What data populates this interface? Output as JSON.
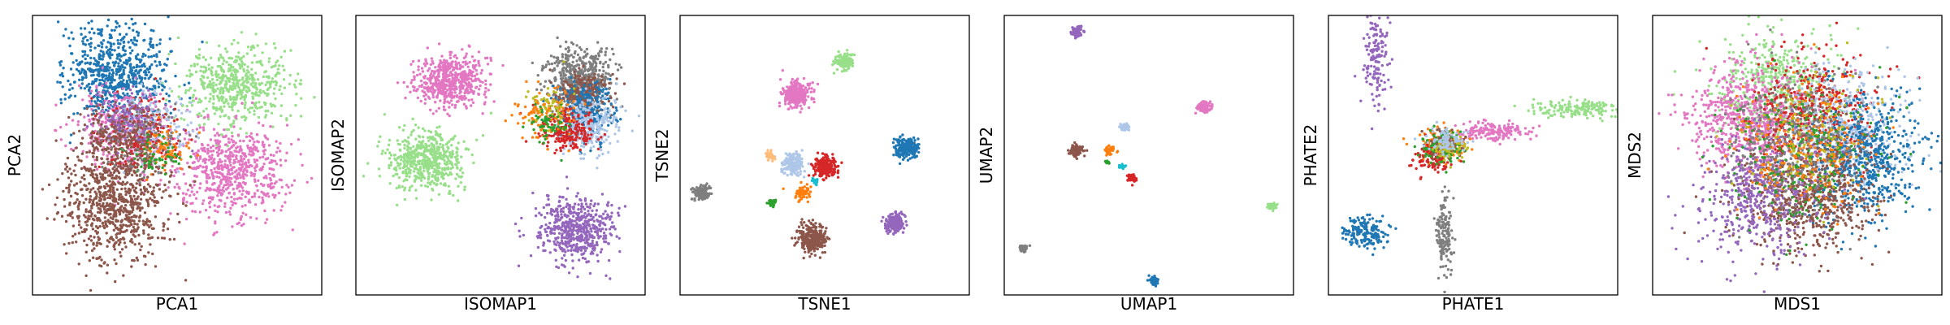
{
  "chart_data": [
    {
      "type": "scatter",
      "xlabel": "PCA1",
      "ylabel": "PCA2",
      "xlim": [
        -6,
        6
      ],
      "ylim": [
        -6,
        6
      ],
      "grid": false,
      "ticks": "none",
      "clusters": [
        {
          "color": "#1f77b4",
          "center": [
            -2.5,
            3.5
          ],
          "spread": [
            1.0,
            1.1
          ],
          "n": 700
        },
        {
          "color": "#98df8a",
          "center": [
            2.5,
            3.0
          ],
          "spread": [
            1.1,
            0.9
          ],
          "n": 550
        },
        {
          "color": "#e377c2",
          "center": [
            -2.3,
            1.1
          ],
          "spread": [
            1.0,
            0.9
          ],
          "n": 350
        },
        {
          "color": "#e377c2",
          "center": [
            2.2,
            -0.7
          ],
          "spread": [
            1.2,
            1.0
          ],
          "n": 650
        },
        {
          "color": "#d62728",
          "center": [
            -1.4,
            0.8
          ],
          "spread": [
            0.8,
            0.8
          ],
          "n": 200
        },
        {
          "color": "#aec7e8",
          "center": [
            -1.0,
            1.3
          ],
          "spread": [
            0.8,
            0.8
          ],
          "n": 150
        },
        {
          "color": "#ff7f0e",
          "center": [
            -0.6,
            0.3
          ],
          "spread": [
            0.5,
            0.5
          ],
          "n": 80
        },
        {
          "color": "#8c564b",
          "center": [
            -2.4,
            0.9
          ],
          "spread": [
            0.9,
            0.7
          ],
          "n": 250
        },
        {
          "color": "#8c564b",
          "center": [
            -2.6,
            -2.0
          ],
          "spread": [
            1.1,
            1.2
          ],
          "n": 800
        },
        {
          "color": "#2ca02c",
          "center": [
            -1.0,
            0.0
          ],
          "spread": [
            0.6,
            0.5
          ],
          "n": 60
        },
        {
          "color": "#9467bd",
          "center": [
            -1.8,
            1.6
          ],
          "spread": [
            0.8,
            0.6
          ],
          "n": 100
        },
        {
          "color": "#7f7f7f",
          "center": [
            -1.5,
            0.5
          ],
          "spread": [
            0.8,
            0.7
          ],
          "n": 60
        }
      ]
    },
    {
      "type": "scatter",
      "xlabel": "ISOMAP1",
      "ylabel": "ISOMAP2",
      "xlim": [
        -6,
        6
      ],
      "ylim": [
        -6,
        6
      ],
      "grid": false,
      "ticks": "none",
      "clusters": [
        {
          "color": "#e377c2",
          "center": [
            -2.1,
            3.2
          ],
          "spread": [
            0.75,
            0.55
          ],
          "n": 550
        },
        {
          "color": "#98df8a",
          "center": [
            -3.0,
            -0.2
          ],
          "spread": [
            0.8,
            0.65
          ],
          "n": 550
        },
        {
          "color": "#9467bd",
          "center": [
            3.1,
            -3.2
          ],
          "spread": [
            0.75,
            0.7
          ],
          "n": 550
        },
        {
          "color": "#7f7f7f",
          "center": [
            3.3,
            3.4
          ],
          "spread": [
            0.7,
            0.6
          ],
          "n": 450
        },
        {
          "color": "#8c564b",
          "center": [
            3.4,
            2.6
          ],
          "spread": [
            0.55,
            0.5
          ],
          "n": 300
        },
        {
          "color": "#1f77b4",
          "center": [
            3.5,
            1.8
          ],
          "spread": [
            0.6,
            0.6
          ],
          "n": 300
        },
        {
          "color": "#aec7e8",
          "center": [
            3.7,
            1.3
          ],
          "spread": [
            0.6,
            0.6
          ],
          "n": 250
        },
        {
          "color": "#d62728",
          "center": [
            2.8,
            1.1
          ],
          "spread": [
            0.55,
            0.45
          ],
          "n": 200
        },
        {
          "color": "#ff7f0e",
          "center": [
            1.8,
            1.8
          ],
          "spread": [
            0.6,
            0.55
          ],
          "n": 120
        },
        {
          "color": "#2ca02c",
          "center": [
            1.9,
            1.3
          ],
          "spread": [
            0.4,
            0.4
          ],
          "n": 60
        },
        {
          "color": "#bcbd22",
          "center": [
            2.0,
            2.4
          ],
          "spread": [
            0.5,
            0.5
          ],
          "n": 40
        }
      ]
    },
    {
      "type": "scatter",
      "xlabel": "TSNE1",
      "ylabel": "TSNE2",
      "xlim": [
        -6,
        6
      ],
      "ylim": [
        -6,
        6
      ],
      "grid": false,
      "ticks": "none",
      "clusters": [
        {
          "color": "#e377c2",
          "center": [
            -1.2,
            2.6
          ],
          "spread": [
            0.3,
            0.27
          ],
          "n": 320
        },
        {
          "color": "#98df8a",
          "center": [
            0.8,
            4.0
          ],
          "spread": [
            0.18,
            0.16
          ],
          "n": 160
        },
        {
          "color": "#1f77b4",
          "center": [
            3.4,
            0.3
          ],
          "spread": [
            0.22,
            0.22
          ],
          "n": 220
        },
        {
          "color": "#d62728",
          "center": [
            0.0,
            -0.5
          ],
          "spread": [
            0.24,
            0.22
          ],
          "n": 220
        },
        {
          "color": "#aec7e8",
          "center": [
            -1.3,
            -0.4
          ],
          "spread": [
            0.22,
            0.22
          ],
          "n": 180
        },
        {
          "color": "#8c564b",
          "center": [
            -0.5,
            -3.6
          ],
          "spread": [
            0.3,
            0.28
          ],
          "n": 320
        },
        {
          "color": "#9467bd",
          "center": [
            2.9,
            -2.9
          ],
          "spread": [
            0.2,
            0.2
          ],
          "n": 180
        },
        {
          "color": "#7f7f7f",
          "center": [
            -5.1,
            -1.6
          ],
          "spread": [
            0.17,
            0.15
          ],
          "n": 140
        },
        {
          "color": "#ffbb78",
          "center": [
            -2.3,
            0.0
          ],
          "spread": [
            0.1,
            0.1
          ],
          "n": 30
        },
        {
          "color": "#ff7f0e",
          "center": [
            -0.9,
            -1.6
          ],
          "spread": [
            0.2,
            0.17
          ],
          "n": 60
        },
        {
          "color": "#2ca02c",
          "center": [
            -2.2,
            -2.1
          ],
          "spread": [
            0.1,
            0.09
          ],
          "n": 25
        },
        {
          "color": "#17becf",
          "center": [
            -0.4,
            -1.1
          ],
          "spread": [
            0.08,
            0.08
          ],
          "n": 15
        }
      ]
    },
    {
      "type": "scatter",
      "xlabel": "UMAP1",
      "ylabel": "UMAP2",
      "xlim": [
        -6,
        6
      ],
      "ylim": [
        -6,
        6
      ],
      "grid": false,
      "ticks": "none",
      "clusters": [
        {
          "color": "#9467bd",
          "center": [
            -3.0,
            5.3
          ],
          "spread": [
            0.12,
            0.1
          ],
          "n": 70
        },
        {
          "color": "#e377c2",
          "center": [
            2.3,
            2.1
          ],
          "spread": [
            0.15,
            0.12
          ],
          "n": 80
        },
        {
          "color": "#aec7e8",
          "center": [
            -1.0,
            1.2
          ],
          "spread": [
            0.1,
            0.09
          ],
          "n": 50
        },
        {
          "color": "#8c564b",
          "center": [
            -3.0,
            0.2
          ],
          "spread": [
            0.16,
            0.12
          ],
          "n": 90
        },
        {
          "color": "#ff7f0e",
          "center": [
            -1.6,
            0.2
          ],
          "spread": [
            0.12,
            0.1
          ],
          "n": 35
        },
        {
          "color": "#d62728",
          "center": [
            -0.7,
            -1.0
          ],
          "spread": [
            0.1,
            0.09
          ],
          "n": 50
        },
        {
          "color": "#98df8a",
          "center": [
            5.1,
            -2.2
          ],
          "spread": [
            0.08,
            0.07
          ],
          "n": 40
        },
        {
          "color": "#7f7f7f",
          "center": [
            -5.2,
            -4.0
          ],
          "spread": [
            0.09,
            0.07
          ],
          "n": 35
        },
        {
          "color": "#1f77b4",
          "center": [
            0.2,
            -5.4
          ],
          "spread": [
            0.1,
            0.09
          ],
          "n": 60
        },
        {
          "color": "#17becf",
          "center": [
            -1.1,
            -0.5
          ],
          "spread": [
            0.08,
            0.06
          ],
          "n": 15
        },
        {
          "color": "#2ca02c",
          "center": [
            -1.7,
            -0.3
          ],
          "spread": [
            0.07,
            0.05
          ],
          "n": 12
        }
      ]
    },
    {
      "type": "scatter",
      "xlabel": "PHATE1",
      "ylabel": "PHATE2",
      "xlim": [
        -6,
        6
      ],
      "ylim": [
        -6,
        6
      ],
      "grid": false,
      "ticks": "none",
      "clusters": [
        {
          "color": "#9467bd",
          "center": [
            -4.0,
            4.2
          ],
          "spread": [
            0.25,
            1.1
          ],
          "n": 150
        },
        {
          "color": "#98df8a",
          "center": [
            4.5,
            2.0
          ],
          "spread": [
            1.0,
            0.2
          ],
          "n": 170
        },
        {
          "color": "#1f77b4",
          "center": [
            -4.5,
            -3.3
          ],
          "spread": [
            0.45,
            0.35
          ],
          "n": 170
        },
        {
          "color": "#7f7f7f",
          "center": [
            -1.2,
            -3.4
          ],
          "spread": [
            0.18,
            0.9
          ],
          "n": 150
        },
        {
          "color": "#e377c2",
          "center": [
            0.8,
            1.0
          ],
          "spread": [
            0.7,
            0.2
          ],
          "n": 170
        },
        {
          "color": "#ff7f0e",
          "center": [
            -1.3,
            0.5
          ],
          "spread": [
            0.5,
            0.35
          ],
          "n": 120
        },
        {
          "color": "#d62728",
          "center": [
            -1.6,
            -0.1
          ],
          "spread": [
            0.4,
            0.3
          ],
          "n": 120
        },
        {
          "color": "#8c564b",
          "center": [
            -1.2,
            0.5
          ],
          "spread": [
            0.35,
            0.3
          ],
          "n": 100
        },
        {
          "color": "#2ca02c",
          "center": [
            -1.3,
            0.4
          ],
          "spread": [
            0.45,
            0.35
          ],
          "n": 90
        },
        {
          "color": "#bcbd22",
          "center": [
            -1.0,
            0.3
          ],
          "spread": [
            0.35,
            0.3
          ],
          "n": 60
        },
        {
          "color": "#aec7e8",
          "center": [
            -1.1,
            0.6
          ],
          "spread": [
            0.4,
            0.3
          ],
          "n": 80
        }
      ]
    },
    {
      "type": "scatter",
      "xlabel": "MDS1",
      "ylabel": "MDS2",
      "xlim": [
        -6,
        6
      ],
      "ylim": [
        -6,
        6
      ],
      "grid": false,
      "ticks": "none",
      "clusters": [
        {
          "color": "#98df8a",
          "center": [
            -1.0,
            2.8
          ],
          "spread": [
            1.2,
            1.2
          ],
          "n": 500
        },
        {
          "color": "#e377c2",
          "center": [
            -2.0,
            1.5
          ],
          "spread": [
            1.2,
            1.2
          ],
          "n": 700
        },
        {
          "color": "#d62728",
          "center": [
            0.8,
            1.8
          ],
          "spread": [
            1.3,
            1.3
          ],
          "n": 450
        },
        {
          "color": "#aec7e8",
          "center": [
            2.2,
            1.0
          ],
          "spread": [
            1.2,
            1.3
          ],
          "n": 450
        },
        {
          "color": "#1f77b4",
          "center": [
            2.8,
            -0.2
          ],
          "spread": [
            1.1,
            1.3
          ],
          "n": 600
        },
        {
          "color": "#8c564b",
          "center": [
            0.4,
            -1.7
          ],
          "spread": [
            1.4,
            1.2
          ],
          "n": 700
        },
        {
          "color": "#9467bd",
          "center": [
            -1.5,
            -1.7
          ],
          "spread": [
            1.3,
            1.3
          ],
          "n": 500
        },
        {
          "color": "#7f7f7f",
          "center": [
            0.0,
            0.8
          ],
          "spread": [
            1.4,
            1.4
          ],
          "n": 350
        },
        {
          "color": "#ff7f0e",
          "center": [
            0.3,
            0.3
          ],
          "spread": [
            1.4,
            1.4
          ],
          "n": 250
        },
        {
          "color": "#2ca02c",
          "center": [
            0.0,
            0.0
          ],
          "spread": [
            1.5,
            1.5
          ],
          "n": 200
        },
        {
          "color": "#bcbd22",
          "center": [
            0.5,
            1.0
          ],
          "spread": [
            1.3,
            1.3
          ],
          "n": 100
        }
      ]
    }
  ]
}
